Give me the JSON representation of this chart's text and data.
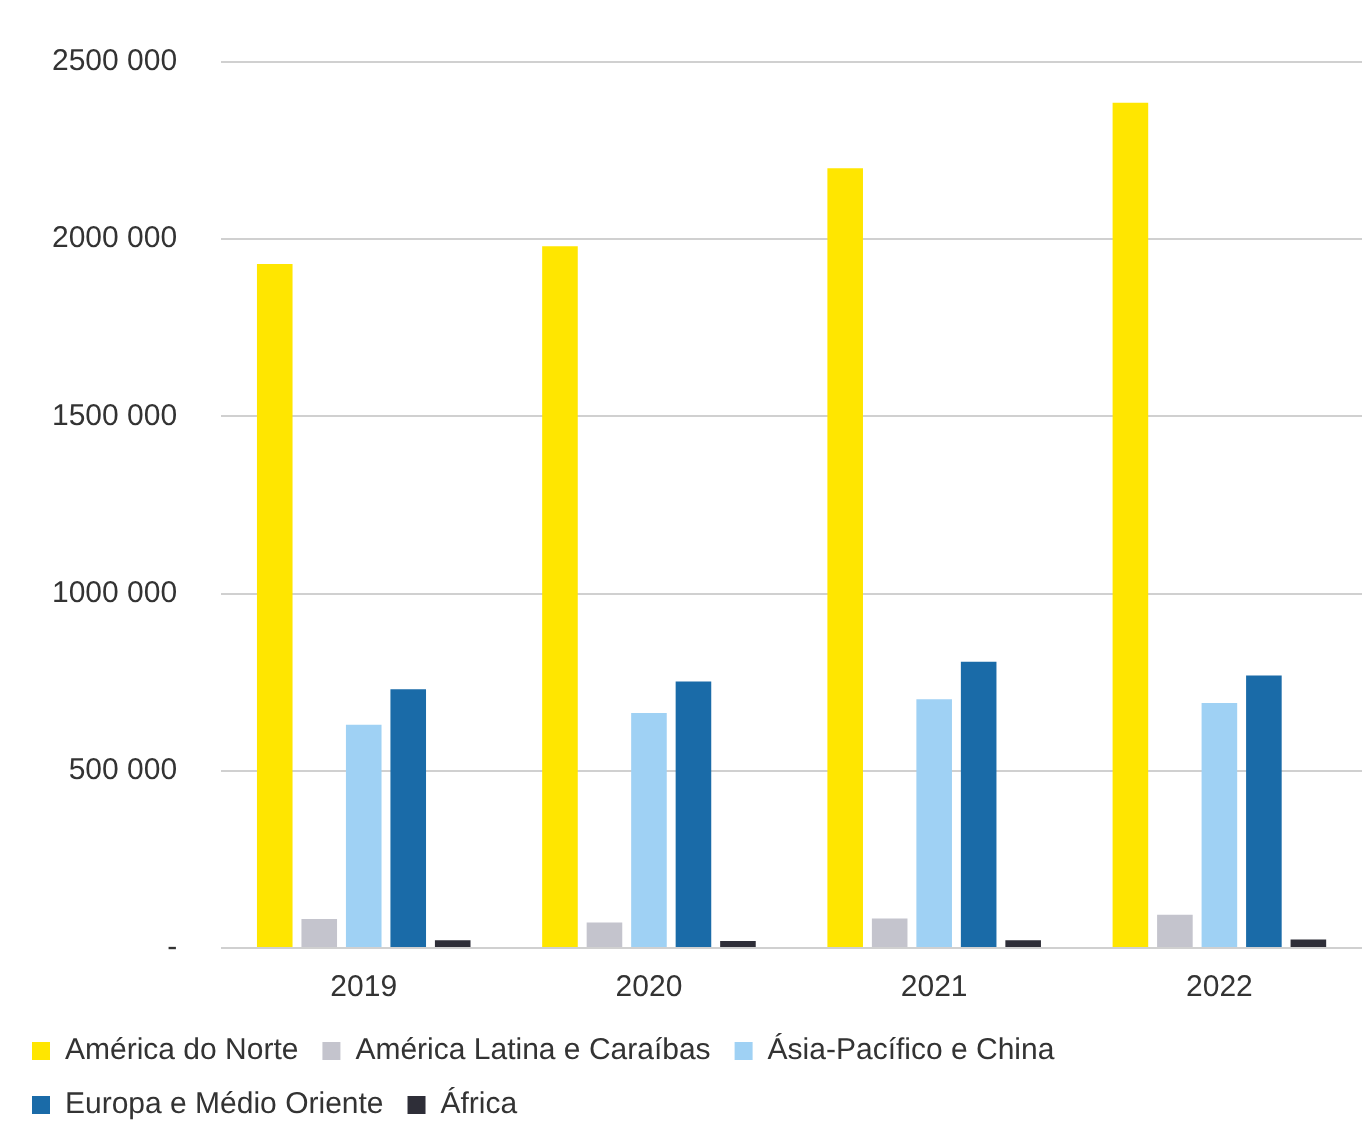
{
  "chart_data": {
    "type": "bar",
    "categories": [
      "2019",
      "2020",
      "2021",
      "2022"
    ],
    "series": [
      {
        "name": "América do Norte",
        "color": "#ffe600",
        "values": [
          1930000,
          1980000,
          2200000,
          2385000
        ]
      },
      {
        "name": "América Latina e Caraíbas",
        "color": "#c4c4cd",
        "values": [
          82000,
          72000,
          83000,
          94000
        ]
      },
      {
        "name": "Ásia-Pacífico e China",
        "color": "#9fd1f4",
        "values": [
          630000,
          663000,
          702000,
          691000
        ]
      },
      {
        "name": "Europa e Médio Oriente",
        "color": "#1a6ba8",
        "values": [
          730000,
          752000,
          808000,
          769000
        ]
      },
      {
        "name": "África",
        "color": "#2e2e38",
        "values": [
          22000,
          20000,
          22000,
          24000
        ]
      }
    ],
    "ylim": [
      0,
      2500000
    ],
    "yticks": [
      {
        "value": 0,
        "label": "-"
      },
      {
        "value": 500000,
        "label": "500 000"
      },
      {
        "value": 1000000,
        "label": "1000 000"
      },
      {
        "value": 1500000,
        "label": "1500 000"
      },
      {
        "value": 2000000,
        "label": "2000 000"
      },
      {
        "value": 2500000,
        "label": "2500 000"
      }
    ],
    "grid": "y",
    "legend": "bottom"
  }
}
